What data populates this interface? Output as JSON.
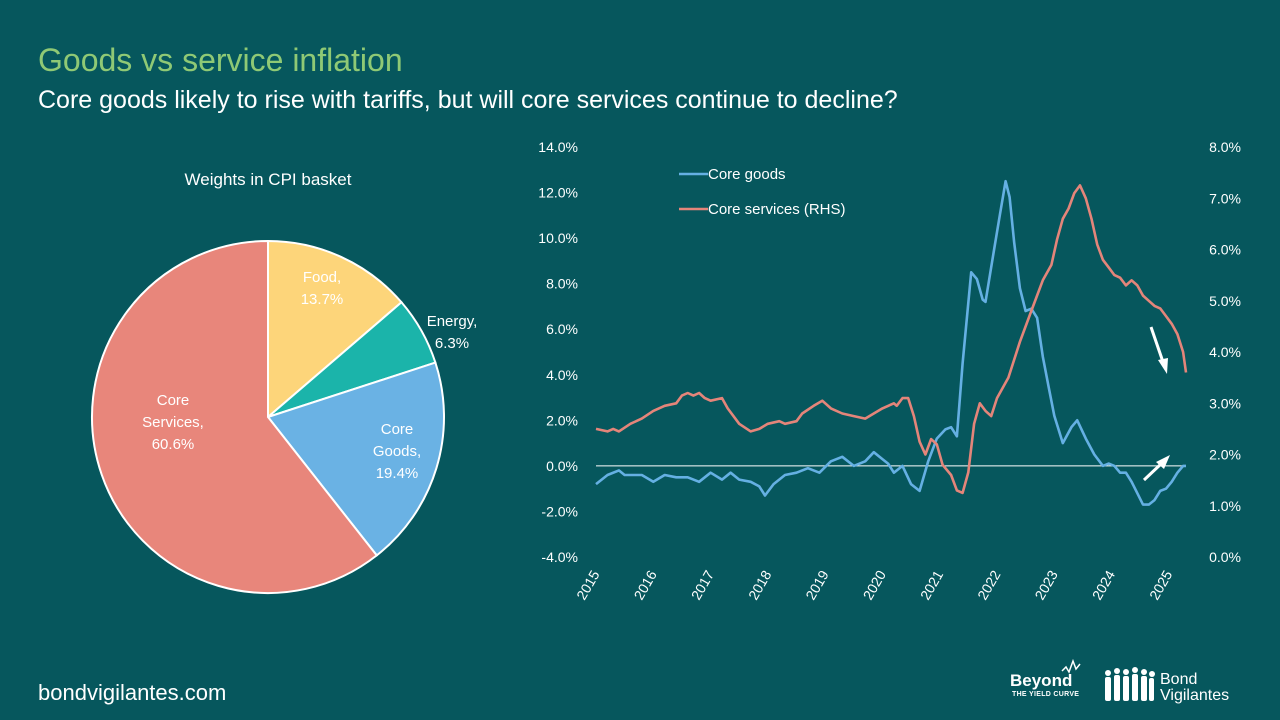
{
  "header": {
    "title": "Goods vs service inflation",
    "subtitle": "Core goods likely to rise with tariffs, but will core services continue to decline?"
  },
  "footer": {
    "url": "bondvigilantes.com",
    "logo_beyond_main": "Beyond",
    "logo_beyond_sub": "THE YIELD CURVE",
    "logo_bv_line1": "Bond",
    "logo_bv_line2": "Vigilantes"
  },
  "colors": {
    "background": "#06575D",
    "title": "#8FC975",
    "core_goods": "#65B0E3",
    "core_services": "#E4857A",
    "food": "#FDD57A",
    "energy": "#1BB4AA",
    "pie_core_services": "#E8867B",
    "pie_core_goods": "#6AB2E4"
  },
  "chart_data": [
    {
      "type": "pie",
      "title": "Weights in CPI basket",
      "slices": [
        {
          "label_line1": "Food,",
          "label_line2": "13.7%",
          "value": 13.7,
          "color": "#FDD57A"
        },
        {
          "label_line1": "Energy,",
          "label_line2": "6.3%",
          "value": 6.3,
          "color": "#1BB4AA"
        },
        {
          "label_line1": "Core Goods,",
          "label_line2": "19.4%",
          "value": 19.4,
          "color": "#6AB2E4"
        },
        {
          "label_line1": "Core Services,",
          "label_line2": "60.6%",
          "value": 60.6,
          "color": "#E8867B"
        }
      ]
    },
    {
      "type": "line",
      "title": "",
      "x_ticks": [
        "2015",
        "2016",
        "2017",
        "2018",
        "2019",
        "2020",
        "2021",
        "2022",
        "2023",
        "2024",
        "2025"
      ],
      "xlim": [
        2015.0,
        2025.3
      ],
      "y_left": {
        "ylim": [
          -4,
          14
        ],
        "ticks": [
          "-4.0%",
          "-2.0%",
          "0.0%",
          "2.0%",
          "4.0%",
          "6.0%",
          "8.0%",
          "10.0%",
          "12.0%",
          "14.0%"
        ]
      },
      "y_right": {
        "ylim": [
          0,
          8
        ],
        "ticks": [
          "0.0%",
          "1.0%",
          "2.0%",
          "3.0%",
          "4.0%",
          "5.0%",
          "6.0%",
          "7.0%",
          "8.0%"
        ]
      },
      "legend_position": "top-left",
      "series": [
        {
          "name": "Core goods",
          "axis": "left",
          "color": "#65B0E3",
          "points": [
            [
              2015.0,
              -0.8
            ],
            [
              2015.2,
              -0.4
            ],
            [
              2015.4,
              -0.2
            ],
            [
              2015.5,
              -0.4
            ],
            [
              2015.8,
              -0.4
            ],
            [
              2016.0,
              -0.7
            ],
            [
              2016.2,
              -0.4
            ],
            [
              2016.4,
              -0.5
            ],
            [
              2016.6,
              -0.5
            ],
            [
              2016.8,
              -0.7
            ],
            [
              2017.0,
              -0.3
            ],
            [
              2017.2,
              -0.6
            ],
            [
              2017.35,
              -0.3
            ],
            [
              2017.5,
              -0.6
            ],
            [
              2017.7,
              -0.7
            ],
            [
              2017.85,
              -0.9
            ],
            [
              2017.95,
              -1.3
            ],
            [
              2018.1,
              -0.8
            ],
            [
              2018.3,
              -0.4
            ],
            [
              2018.5,
              -0.3
            ],
            [
              2018.7,
              -0.1
            ],
            [
              2018.9,
              -0.3
            ],
            [
              2019.1,
              0.2
            ],
            [
              2019.3,
              0.4
            ],
            [
              2019.5,
              0.0
            ],
            [
              2019.7,
              0.2
            ],
            [
              2019.85,
              0.6
            ],
            [
              2020.0,
              0.3
            ],
            [
              2020.1,
              0.1
            ],
            [
              2020.2,
              -0.3
            ],
            [
              2020.35,
              0.0
            ],
            [
              2020.5,
              -0.8
            ],
            [
              2020.65,
              -1.1
            ],
            [
              2020.8,
              0.2
            ],
            [
              2020.95,
              1.2
            ],
            [
              2021.1,
              1.6
            ],
            [
              2021.2,
              1.7
            ],
            [
              2021.3,
              1.3
            ],
            [
              2021.4,
              4.5
            ],
            [
              2021.55,
              8.5
            ],
            [
              2021.65,
              8.2
            ],
            [
              2021.75,
              7.3
            ],
            [
              2021.8,
              7.2
            ],
            [
              2021.95,
              9.5
            ],
            [
              2022.05,
              11.0
            ],
            [
              2022.15,
              12.5
            ],
            [
              2022.22,
              11.8
            ],
            [
              2022.3,
              9.8
            ],
            [
              2022.4,
              7.8
            ],
            [
              2022.5,
              6.8
            ],
            [
              2022.6,
              6.9
            ],
            [
              2022.7,
              6.5
            ],
            [
              2022.8,
              4.8
            ],
            [
              2022.9,
              3.5
            ],
            [
              2023.0,
              2.2
            ],
            [
              2023.15,
              1.0
            ],
            [
              2023.3,
              1.7
            ],
            [
              2023.4,
              2.0
            ],
            [
              2023.55,
              1.2
            ],
            [
              2023.7,
              0.5
            ],
            [
              2023.85,
              0.0
            ],
            [
              2023.95,
              0.1
            ],
            [
              2024.05,
              0.0
            ],
            [
              2024.15,
              -0.3
            ],
            [
              2024.25,
              -0.3
            ],
            [
              2024.35,
              -0.7
            ],
            [
              2024.45,
              -1.2
            ],
            [
              2024.55,
              -1.7
            ],
            [
              2024.65,
              -1.7
            ],
            [
              2024.75,
              -1.5
            ],
            [
              2024.85,
              -1.1
            ],
            [
              2024.95,
              -1.0
            ],
            [
              2025.05,
              -0.7
            ],
            [
              2025.15,
              -0.3
            ],
            [
              2025.25,
              0.0
            ],
            [
              2025.3,
              0.0
            ]
          ]
        },
        {
          "name": "Core services (RHS)",
          "axis": "right",
          "color": "#E4857A",
          "points": [
            [
              2015.0,
              2.5
            ],
            [
              2015.2,
              2.45
            ],
            [
              2015.3,
              2.5
            ],
            [
              2015.4,
              2.45
            ],
            [
              2015.6,
              2.6
            ],
            [
              2015.8,
              2.7
            ],
            [
              2016.0,
              2.85
            ],
            [
              2016.2,
              2.95
            ],
            [
              2016.4,
              3.0
            ],
            [
              2016.5,
              3.15
            ],
            [
              2016.6,
              3.2
            ],
            [
              2016.7,
              3.15
            ],
            [
              2016.8,
              3.2
            ],
            [
              2016.9,
              3.1
            ],
            [
              2017.0,
              3.05
            ],
            [
              2017.2,
              3.1
            ],
            [
              2017.3,
              2.9
            ],
            [
              2017.5,
              2.6
            ],
            [
              2017.7,
              2.45
            ],
            [
              2017.85,
              2.5
            ],
            [
              2018.0,
              2.6
            ],
            [
              2018.2,
              2.65
            ],
            [
              2018.3,
              2.6
            ],
            [
              2018.5,
              2.65
            ],
            [
              2018.6,
              2.8
            ],
            [
              2018.8,
              2.95
            ],
            [
              2018.95,
              3.05
            ],
            [
              2019.1,
              2.9
            ],
            [
              2019.3,
              2.8
            ],
            [
              2019.5,
              2.75
            ],
            [
              2019.7,
              2.7
            ],
            [
              2019.85,
              2.8
            ],
            [
              2020.0,
              2.9
            ],
            [
              2020.2,
              3.0
            ],
            [
              2020.25,
              2.95
            ],
            [
              2020.35,
              3.1
            ],
            [
              2020.45,
              3.1
            ],
            [
              2020.55,
              2.75
            ],
            [
              2020.65,
              2.25
            ],
            [
              2020.75,
              2.0
            ],
            [
              2020.85,
              2.3
            ],
            [
              2020.95,
              2.2
            ],
            [
              2021.05,
              1.8
            ],
            [
              2021.2,
              1.6
            ],
            [
              2021.3,
              1.3
            ],
            [
              2021.4,
              1.25
            ],
            [
              2021.5,
              1.65
            ],
            [
              2021.6,
              2.6
            ],
            [
              2021.7,
              3.0
            ],
            [
              2021.8,
              2.85
            ],
            [
              2021.9,
              2.75
            ],
            [
              2022.0,
              3.1
            ],
            [
              2022.2,
              3.5
            ],
            [
              2022.4,
              4.2
            ],
            [
              2022.6,
              4.8
            ],
            [
              2022.8,
              5.4
            ],
            [
              2022.95,
              5.7
            ],
            [
              2023.05,
              6.2
            ],
            [
              2023.15,
              6.6
            ],
            [
              2023.25,
              6.8
            ],
            [
              2023.35,
              7.1
            ],
            [
              2023.45,
              7.25
            ],
            [
              2023.55,
              7.0
            ],
            [
              2023.65,
              6.6
            ],
            [
              2023.75,
              6.1
            ],
            [
              2023.85,
              5.8
            ],
            [
              2023.95,
              5.65
            ],
            [
              2024.05,
              5.5
            ],
            [
              2024.15,
              5.45
            ],
            [
              2024.25,
              5.3
            ],
            [
              2024.35,
              5.4
            ],
            [
              2024.45,
              5.3
            ],
            [
              2024.55,
              5.1
            ],
            [
              2024.65,
              5.0
            ],
            [
              2024.75,
              4.9
            ],
            [
              2024.85,
              4.85
            ],
            [
              2024.95,
              4.7
            ],
            [
              2025.05,
              4.55
            ],
            [
              2025.15,
              4.35
            ],
            [
              2025.25,
              4.0
            ],
            [
              2025.3,
              3.6
            ]
          ]
        }
      ],
      "zero_line_left": 0
    }
  ]
}
